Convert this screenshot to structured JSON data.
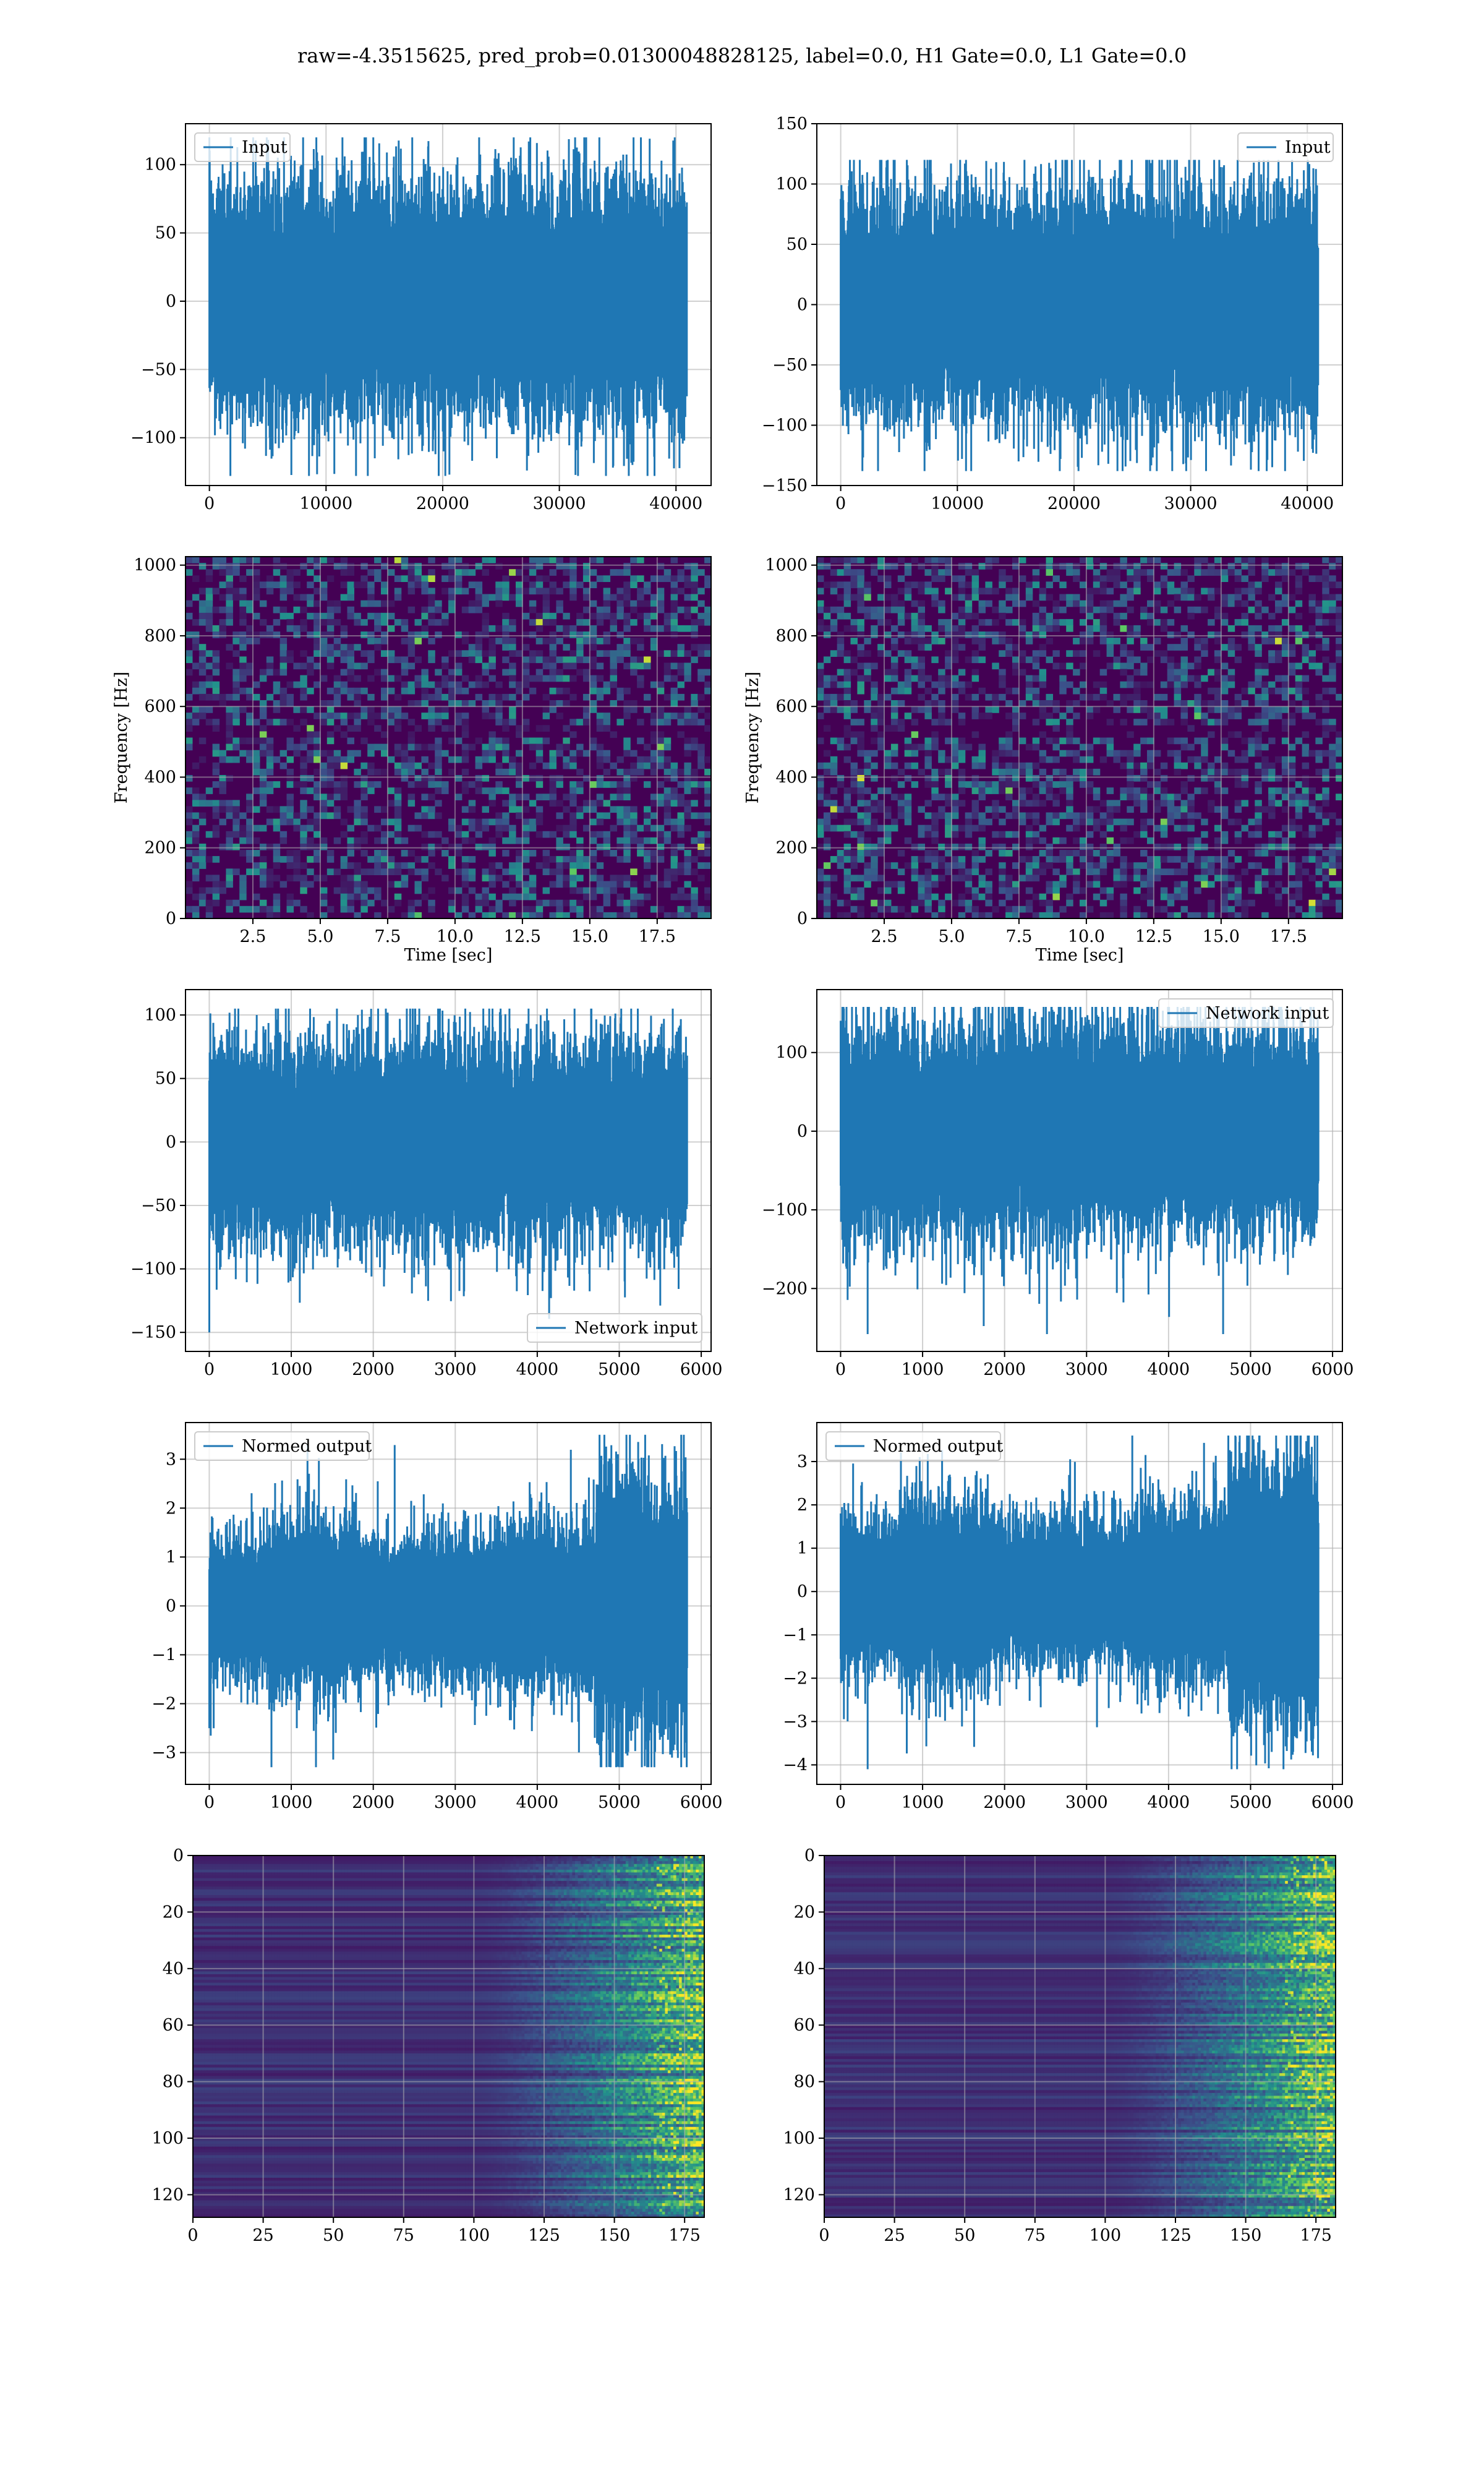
{
  "figure": {
    "suptitle": "raw=-4.3515625, pred_prob=0.01300048828125, label=0.0, H1 Gate=0.0, L1 Gate=0.0"
  },
  "colors": {
    "line": "#1f77b4",
    "grid": "#b0b0b0",
    "viridis_dark": "#440154",
    "viridis_bright": "#fde725"
  },
  "chart_data": [
    {
      "id": "input-h1",
      "type": "line",
      "series": [
        {
          "name": "Input",
          "n_samples": 40960,
          "amplitude_envelope": [
            -128,
            120
          ]
        }
      ],
      "legend_placement": "upper-left",
      "xlim": [
        -2048,
        43008
      ],
      "ylim": [
        -135,
        130
      ],
      "xticks": [
        0,
        10000,
        20000,
        30000,
        40000
      ],
      "yticks": [
        -100,
        -50,
        0,
        50,
        100
      ],
      "grid": true
    },
    {
      "id": "input-l1",
      "type": "line",
      "series": [
        {
          "name": "Input",
          "n_samples": 40960,
          "amplitude_envelope": [
            -138,
            120
          ]
        }
      ],
      "legend_placement": "upper-right",
      "xlim": [
        -2048,
        43008
      ],
      "ylim": [
        -150,
        150
      ],
      "xticks": [
        0,
        10000,
        20000,
        30000,
        40000
      ],
      "yticks": [
        -150,
        -100,
        -50,
        0,
        50,
        100,
        150
      ],
      "grid": true
    },
    {
      "id": "spectrogram-h1",
      "type": "heatmap",
      "xlabel": "Time [sec]",
      "ylabel": "Frequency [Hz]",
      "xlim": [
        0,
        19.5
      ],
      "ylim": [
        0,
        1024
      ],
      "xticks": [
        2.5,
        5.0,
        7.5,
        10.0,
        12.5,
        15.0,
        17.5
      ],
      "yticks": [
        0,
        200,
        400,
        600,
        800,
        1000
      ],
      "colormap": "viridis",
      "grid": true
    },
    {
      "id": "spectrogram-l1",
      "type": "heatmap",
      "xlabel": "Time [sec]",
      "ylabel": "Frequency [Hz]",
      "xlim": [
        0,
        19.5
      ],
      "ylim": [
        0,
        1024
      ],
      "xticks": [
        2.5,
        5.0,
        7.5,
        10.0,
        12.5,
        15.0,
        17.5
      ],
      "yticks": [
        0,
        200,
        400,
        600,
        800,
        1000
      ],
      "colormap": "viridis",
      "grid": true
    },
    {
      "id": "network-input-h1",
      "type": "line",
      "series": [
        {
          "name": "Network input",
          "n_samples": 5832,
          "amplitude_envelope": [
            -150,
            105
          ]
        }
      ],
      "legend_placement": "lower-right",
      "xlim": [
        -290,
        6120
      ],
      "ylim": [
        -165,
        120
      ],
      "xticks": [
        0,
        1000,
        2000,
        3000,
        4000,
        5000,
        6000
      ],
      "yticks": [
        -150,
        -100,
        -50,
        0,
        50,
        100
      ],
      "grid": true
    },
    {
      "id": "network-input-l1",
      "type": "line",
      "series": [
        {
          "name": "Network input",
          "n_samples": 5832,
          "amplitude_envelope": [
            -258,
            158
          ]
        }
      ],
      "legend_placement": "upper-right",
      "xlim": [
        -290,
        6120
      ],
      "ylim": [
        -280,
        180
      ],
      "xticks": [
        0,
        1000,
        2000,
        3000,
        4000,
        5000,
        6000
      ],
      "yticks": [
        -200,
        -100,
        0,
        100
      ],
      "grid": true
    },
    {
      "id": "normed-output-h1",
      "type": "line",
      "series": [
        {
          "name": "Normed output",
          "n_samples": 5832,
          "amplitude_envelope": [
            -3.3,
            3.5
          ]
        }
      ],
      "legend_placement": "upper-left",
      "xlim": [
        -290,
        6120
      ],
      "ylim": [
        -3.65,
        3.75
      ],
      "xticks": [
        0,
        1000,
        2000,
        3000,
        4000,
        5000,
        6000
      ],
      "yticks": [
        -3,
        -2,
        -1,
        0,
        1,
        2,
        3
      ],
      "grid": true
    },
    {
      "id": "normed-output-l1",
      "type": "line",
      "series": [
        {
          "name": "Normed output",
          "n_samples": 5832,
          "amplitude_envelope": [
            -4.1,
            3.6
          ]
        }
      ],
      "legend_placement": "upper-left",
      "xlim": [
        -290,
        6120
      ],
      "ylim": [
        -4.45,
        3.9
      ],
      "xticks": [
        0,
        1000,
        2000,
        3000,
        4000,
        5000,
        6000
      ],
      "yticks": [
        -4,
        -3,
        -2,
        -1,
        0,
        1,
        2,
        3
      ],
      "grid": true
    },
    {
      "id": "feature-map-h1",
      "type": "heatmap",
      "rows": 128,
      "cols": 182,
      "xlim": [
        0,
        182
      ],
      "ylim": [
        128,
        0
      ],
      "xticks": [
        0,
        25,
        50,
        75,
        100,
        125,
        150,
        175
      ],
      "yticks": [
        0,
        20,
        40,
        60,
        80,
        100,
        120
      ],
      "colormap": "viridis",
      "grid": true
    },
    {
      "id": "feature-map-l1",
      "type": "heatmap",
      "rows": 128,
      "cols": 182,
      "xlim": [
        0,
        182
      ],
      "ylim": [
        128,
        0
      ],
      "xticks": [
        0,
        25,
        50,
        75,
        100,
        125,
        150,
        175
      ],
      "yticks": [
        0,
        20,
        40,
        60,
        80,
        100,
        120
      ],
      "colormap": "viridis",
      "grid": true
    }
  ]
}
